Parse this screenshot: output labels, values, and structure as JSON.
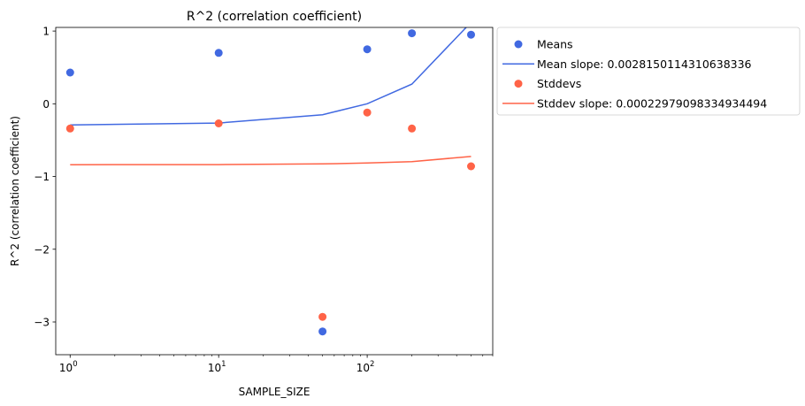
{
  "chart_data": {
    "type": "scatter",
    "title": "R^2 (correlation coefficient)",
    "xlabel": "SAMPLE_SIZE",
    "ylabel": "R^2 (correlation coefficient)",
    "xscale": "log",
    "xlim": [
      0.8,
      700
    ],
    "ylim": [
      -3.45,
      1.05
    ],
    "x_ticks": [
      {
        "value": 1,
        "base": "10",
        "exp": "0"
      },
      {
        "value": 10,
        "base": "10",
        "exp": "1"
      },
      {
        "value": 100,
        "base": "10",
        "exp": "2"
      }
    ],
    "y_ticks": [
      {
        "value": 1,
        "label": "1"
      },
      {
        "value": 0,
        "label": "0"
      },
      {
        "value": -1,
        "label": "−1"
      },
      {
        "value": -2,
        "label": "−2"
      },
      {
        "value": -3,
        "label": "−3"
      }
    ],
    "grid": false,
    "legend_position": "outside-right-top",
    "x": [
      1,
      10,
      50,
      100,
      200,
      500
    ],
    "series": [
      {
        "name": "Means",
        "kind": "scatter",
        "color": "#4169e1",
        "values": [
          0.43,
          0.7,
          -3.13,
          0.75,
          0.97,
          0.95
        ]
      },
      {
        "name": "Stddevs",
        "kind": "scatter",
        "color": "#ff6347",
        "values": [
          -0.34,
          -0.27,
          -2.93,
          -0.12,
          -0.34,
          -0.86
        ]
      },
      {
        "name": "Mean slope: 0.0028150114310638336",
        "kind": "line",
        "color": "#4169e1",
        "values": [
          -0.29,
          -0.265,
          -0.15,
          0.0,
          0.27,
          1.12
        ]
      },
      {
        "name": "Stddev slope: 0.00022979098334934494",
        "kind": "line",
        "color": "#ff6347",
        "values": [
          -0.838,
          -0.836,
          -0.827,
          -0.815,
          -0.795,
          -0.725
        ]
      }
    ],
    "legend_order": [
      0,
      2,
      1,
      3
    ]
  }
}
